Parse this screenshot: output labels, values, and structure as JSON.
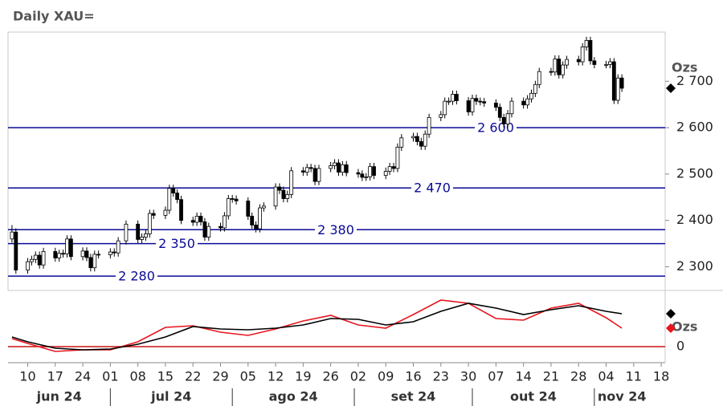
{
  "chart_data": [
    {
      "type": "candlestick",
      "title": "Daily XAU=",
      "y_label": "Ozs",
      "x": [
        "2024-06-06",
        "2024-06-07",
        "2024-06-10",
        "2024-06-11",
        "2024-06-12",
        "2024-06-13",
        "2024-06-14",
        "2024-06-17",
        "2024-06-18",
        "2024-06-19",
        "2024-06-20",
        "2024-06-21",
        "2024-06-24",
        "2024-06-25",
        "2024-06-26",
        "2024-06-27",
        "2024-06-28",
        "2024-07-01",
        "2024-07-02",
        "2024-07-03",
        "2024-07-05",
        "2024-07-08",
        "2024-07-09",
        "2024-07-10",
        "2024-07-11",
        "2024-07-12",
        "2024-07-15",
        "2024-07-16",
        "2024-07-17",
        "2024-07-18",
        "2024-07-19",
        "2024-07-22",
        "2024-07-23",
        "2024-07-24",
        "2024-07-25",
        "2024-07-26",
        "2024-07-29",
        "2024-07-30",
        "2024-07-31",
        "2024-08-01",
        "2024-08-02",
        "2024-08-05",
        "2024-08-06",
        "2024-08-07",
        "2024-08-08",
        "2024-08-09",
        "2024-08-12",
        "2024-08-13",
        "2024-08-14",
        "2024-08-15",
        "2024-08-16",
        "2024-08-19",
        "2024-08-20",
        "2024-08-21",
        "2024-08-22",
        "2024-08-23",
        "2024-08-26",
        "2024-08-27",
        "2024-08-28",
        "2024-08-29",
        "2024-08-30",
        "2024-09-02",
        "2024-09-03",
        "2024-09-04",
        "2024-09-05",
        "2024-09-06",
        "2024-09-09",
        "2024-09-10",
        "2024-09-11",
        "2024-09-12",
        "2024-09-13",
        "2024-09-16",
        "2024-09-17",
        "2024-09-18",
        "2024-09-19",
        "2024-09-20",
        "2024-09-23",
        "2024-09-24",
        "2024-09-25",
        "2024-09-26",
        "2024-09-27",
        "2024-09-30",
        "2024-10-01",
        "2024-10-02",
        "2024-10-03",
        "2024-10-04",
        "2024-10-07",
        "2024-10-08",
        "2024-10-09",
        "2024-10-10",
        "2024-10-11",
        "2024-10-14",
        "2024-10-15",
        "2024-10-16",
        "2024-10-17",
        "2024-10-18",
        "2024-10-21",
        "2024-10-22",
        "2024-10-23",
        "2024-10-24",
        "2024-10-25",
        "2024-10-28",
        "2024-10-29",
        "2024-10-30",
        "2024-10-31",
        "2024-11-01",
        "2024-11-04",
        "2024-11-05",
        "2024-11-06",
        "2024-11-07",
        "2024-11-08"
      ],
      "open": [
        2360,
        2375,
        2293,
        2311,
        2316,
        2325,
        2304,
        2333,
        2319,
        2329,
        2328,
        2360,
        2322,
        2334,
        2320,
        2298,
        2327,
        2326,
        2332,
        2330,
        2356,
        2392,
        2359,
        2364,
        2371,
        2415,
        2411,
        2422,
        2469,
        2459,
        2445,
        2400,
        2396,
        2409,
        2397,
        2364,
        2387,
        2384,
        2410,
        2447,
        2446,
        2442,
        2409,
        2390,
        2382,
        2427,
        2431,
        2472,
        2465,
        2447,
        2456,
        2507,
        2504,
        2514,
        2512,
        2484,
        2512,
        2518,
        2524,
        2504,
        2520,
        2503,
        2500,
        2493,
        2494,
        2516,
        2497,
        2506,
        2516,
        2512,
        2558,
        2578,
        2581,
        2570,
        2560,
        2586,
        2622,
        2628,
        2657,
        2657,
        2672,
        2658,
        2634,
        2663,
        2657,
        2656,
        2653,
        2644,
        2622,
        2608,
        2630,
        2657,
        2649,
        2662,
        2674,
        2693,
        2721,
        2720,
        2748,
        2714,
        2735,
        2747,
        2742,
        2774,
        2788,
        2744,
        2736,
        2736,
        2742,
        2659,
        2707
      ],
      "high": [
        2390,
        2383,
        2319,
        2324,
        2333,
        2333,
        2341,
        2341,
        2337,
        2337,
        2368,
        2368,
        2342,
        2342,
        2328,
        2335,
        2335,
        2340,
        2340,
        2364,
        2400,
        2400,
        2372,
        2379,
        2423,
        2423,
        2430,
        2477,
        2477,
        2467,
        2453,
        2408,
        2417,
        2417,
        2405,
        2395,
        2395,
        2418,
        2455,
        2455,
        2454,
        2450,
        2417,
        2398,
        2435,
        2439,
        2480,
        2480,
        2473,
        2464,
        2515,
        2515,
        2522,
        2522,
        2520,
        2520,
        2526,
        2532,
        2532,
        2528,
        2528,
        2511,
        2508,
        2502,
        2524,
        2524,
        2514,
        2524,
        2524,
        2566,
        2586,
        2589,
        2589,
        2578,
        2594,
        2630,
        2636,
        2665,
        2665,
        2680,
        2680,
        2666,
        2671,
        2671,
        2665,
        2664,
        2661,
        2652,
        2630,
        2638,
        2665,
        2665,
        2670,
        2682,
        2701,
        2729,
        2729,
        2756,
        2756,
        2743,
        2755,
        2755,
        2782,
        2796,
        2796,
        2752,
        2744,
        2750,
        2750,
        2715,
        2715
      ],
      "low": [
        2352,
        2285,
        2285,
        2303,
        2308,
        2296,
        2296,
        2311,
        2311,
        2320,
        2320,
        2314,
        2314,
        2312,
        2290,
        2290,
        2318,
        2318,
        2322,
        2322,
        2348,
        2351,
        2351,
        2356,
        2363,
        2403,
        2403,
        2414,
        2451,
        2437,
        2392,
        2388,
        2388,
        2389,
        2356,
        2356,
        2376,
        2376,
        2402,
        2438,
        2434,
        2401,
        2382,
        2374,
        2374,
        2419,
        2423,
        2457,
        2439,
        2439,
        2448,
        2496,
        2496,
        2504,
        2476,
        2476,
        2504,
        2510,
        2496,
        2496,
        2495,
        2492,
        2485,
        2485,
        2486,
        2489,
        2489,
        2498,
        2504,
        2504,
        2550,
        2570,
        2562,
        2552,
        2552,
        2578,
        2614,
        2620,
        2649,
        2649,
        2650,
        2626,
        2626,
        2649,
        2648,
        2645,
        2636,
        2614,
        2600,
        2600,
        2622,
        2641,
        2641,
        2654,
        2666,
        2685,
        2712,
        2712,
        2706,
        2706,
        2727,
        2734,
        2734,
        2766,
        2736,
        2728,
        2728,
        2728,
        2651,
        2651,
        2677
      ],
      "close": [
        2375,
        2293,
        2311,
        2316,
        2325,
        2304,
        2333,
        2319,
        2329,
        2328,
        2360,
        2322,
        2334,
        2320,
        2298,
        2327,
        2326,
        2332,
        2330,
        2356,
        2392,
        2359,
        2364,
        2371,
        2415,
        2411,
        2422,
        2469,
        2459,
        2445,
        2400,
        2396,
        2409,
        2397,
        2364,
        2387,
        2384,
        2410,
        2447,
        2446,
        2442,
        2409,
        2390,
        2382,
        2427,
        2431,
        2472,
        2465,
        2447,
        2456,
        2507,
        2504,
        2514,
        2512,
        2484,
        2512,
        2518,
        2524,
        2504,
        2520,
        2503,
        2500,
        2493,
        2494,
        2516,
        2497,
        2506,
        2516,
        2512,
        2558,
        2578,
        2581,
        2570,
        2560,
        2586,
        2622,
        2628,
        2657,
        2657,
        2672,
        2658,
        2634,
        2663,
        2657,
        2656,
        2653,
        2644,
        2622,
        2608,
        2630,
        2657,
        2649,
        2662,
        2674,
        2693,
        2721,
        2720,
        2748,
        2714,
        2735,
        2747,
        2742,
        2774,
        2788,
        2744,
        2736,
        2736,
        2742,
        2659,
        2707,
        2685
      ],
      "xlim": [
        "2024-06-05",
        "2024-11-19"
      ],
      "ylim": [
        2249,
        2806
      ],
      "yticks": [
        {
          "value": 2300,
          "label": "2 300"
        },
        {
          "value": 2400,
          "label": "2 400"
        },
        {
          "value": 2500,
          "label": "2 500"
        },
        {
          "value": 2600,
          "label": "2 600"
        },
        {
          "value": 2700,
          "label": "2 700"
        }
      ],
      "levels": {
        "color": "#0a0a96",
        "values": [
          2600,
          2470,
          2380,
          2350,
          2280
        ],
        "value_labels": [
          "2 600",
          "2 470",
          "2 380",
          "2 350",
          "2 280"
        ]
      }
    },
    {
      "type": "line",
      "y_label": "Ozs",
      "x": [
        "2024-06-06",
        "2024-06-10",
        "2024-06-17",
        "2024-06-24",
        "2024-07-01",
        "2024-07-08",
        "2024-07-15",
        "2024-07-22",
        "2024-07-29",
        "2024-08-05",
        "2024-08-12",
        "2024-08-19",
        "2024-08-26",
        "2024-09-02",
        "2024-09-09",
        "2024-09-16",
        "2024-09-23",
        "2024-09-30",
        "2024-10-07",
        "2024-10-14",
        "2024-10-21",
        "2024-10-28",
        "2024-11-04",
        "2024-11-08"
      ],
      "series": [
        {
          "color": "#e8141e",
          "values": [
            5,
            2,
            -3,
            -2,
            -2,
            3,
            12,
            13,
            9,
            7,
            11,
            16,
            19.5,
            13.5,
            11.5,
            20,
            29,
            27,
            17.5,
            16.5,
            24,
            27,
            18,
            11.5
          ]
        },
        {
          "color": "#000000",
          "values": [
            6,
            3,
            -1,
            -2,
            -1.5,
            1.5,
            6,
            12.5,
            11,
            10.5,
            11.5,
            13.5,
            17.5,
            17,
            13.5,
            15.5,
            22,
            27,
            24,
            20,
            23,
            25.5,
            22,
            20.5
          ]
        }
      ],
      "zero_line_color": "#c81414",
      "xlim": [
        "2024-06-05",
        "2024-11-19"
      ],
      "ylim": [
        -10,
        35
      ],
      "yticks": [
        0
      ],
      "xticks": [
        {
          "value": "2024-06-10",
          "label": "10"
        },
        {
          "value": "2024-06-17",
          "label": "17"
        },
        {
          "value": "2024-06-24",
          "label": "24"
        },
        {
          "value": "2024-07-01",
          "label": "01"
        },
        {
          "value": "2024-07-08",
          "label": "08"
        },
        {
          "value": "2024-07-15",
          "label": "15"
        },
        {
          "value": "2024-07-22",
          "label": "22"
        },
        {
          "value": "2024-07-29",
          "label": "29"
        },
        {
          "value": "2024-08-05",
          "label": "05"
        },
        {
          "value": "2024-08-12",
          "label": "12"
        },
        {
          "value": "2024-08-19",
          "label": "19"
        },
        {
          "value": "2024-08-26",
          "label": "26"
        },
        {
          "value": "2024-09-02",
          "label": "02"
        },
        {
          "value": "2024-09-09",
          "label": "09"
        },
        {
          "value": "2024-09-16",
          "label": "16"
        },
        {
          "value": "2024-09-23",
          "label": "23"
        },
        {
          "value": "2024-09-30",
          "label": "30"
        },
        {
          "value": "2024-10-07",
          "label": "07"
        },
        {
          "value": "2024-10-14",
          "label": "14"
        },
        {
          "value": "2024-10-21",
          "label": "21"
        },
        {
          "value": "2024-10-28",
          "label": "28"
        },
        {
          "value": "2024-11-04",
          "label": "04"
        },
        {
          "value": "2024-11-11",
          "label": "11"
        },
        {
          "value": "2024-11-18",
          "label": "18"
        }
      ],
      "months": [
        {
          "value": "2024-06",
          "label": "jun 24"
        },
        {
          "value": "2024-07",
          "label": "jul 24"
        },
        {
          "value": "2024-08",
          "label": "ago 24"
        },
        {
          "value": "2024-09",
          "label": "set 24"
        },
        {
          "value": "2024-10",
          "label": "out 24"
        },
        {
          "value": "2024-11",
          "label": "nov 24"
        }
      ]
    }
  ]
}
